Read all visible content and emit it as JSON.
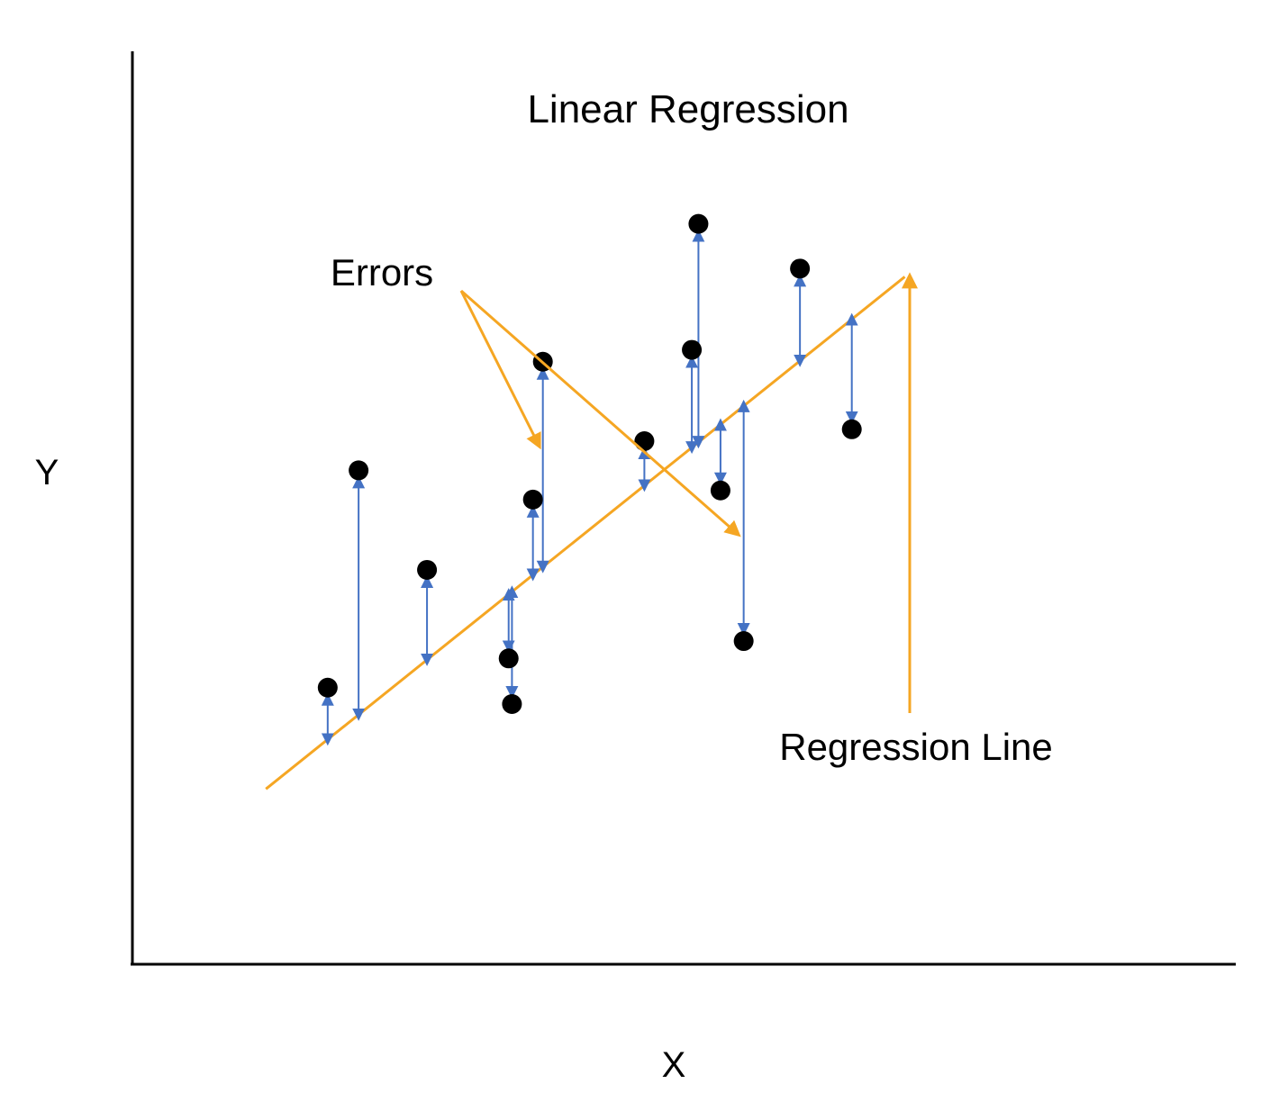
{
  "title": "Linear Regression",
  "x_axis_label": "X",
  "y_axis_label": "Y",
  "errors_label": "Errors",
  "regression_line_label": "Regression Line",
  "colors": {
    "axis": "#000000",
    "regression_line": "#F5A623",
    "annotation_arrow": "#F5A623",
    "error_arrow": "#4472C4",
    "point": "#000000",
    "background": "#ffffff"
  },
  "chart_data": {
    "type": "scatter",
    "title": "Linear Regression",
    "xlabel": "X",
    "ylabel": "Y",
    "xlim": [
      0,
      100
    ],
    "ylim": [
      0,
      100
    ],
    "grid": false,
    "regression_line": {
      "x": [
        12.1,
        70.0
      ],
      "y": [
        19.2,
        75.3
      ]
    },
    "points": [
      {
        "x": 17.7,
        "y": 30.3
      },
      {
        "x": 20.5,
        "y": 54.1
      },
      {
        "x": 26.7,
        "y": 43.2
      },
      {
        "x": 34.1,
        "y": 33.5
      },
      {
        "x": 34.4,
        "y": 28.5
      },
      {
        "x": 36.3,
        "y": 50.9
      },
      {
        "x": 37.2,
        "y": 66.0
      },
      {
        "x": 46.4,
        "y": 57.3
      },
      {
        "x": 50.7,
        "y": 67.3
      },
      {
        "x": 51.3,
        "y": 81.1
      },
      {
        "x": 53.3,
        "y": 51.9
      },
      {
        "x": 55.4,
        "y": 35.4
      },
      {
        "x": 60.5,
        "y": 76.2
      },
      {
        "x": 65.2,
        "y": 58.6
      }
    ],
    "errors_annotation_targets": [
      0,
      12
    ]
  }
}
